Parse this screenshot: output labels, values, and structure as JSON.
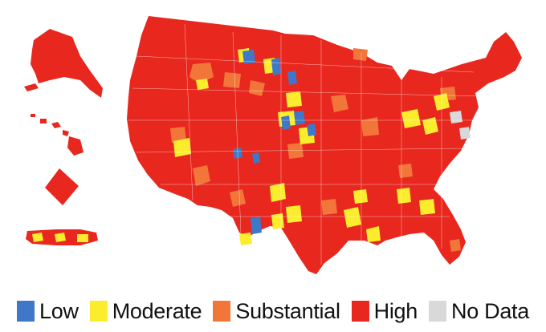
{
  "legend": {
    "items": [
      {
        "key": "low",
        "label": "Low",
        "color": "#3f78c8"
      },
      {
        "key": "moderate",
        "label": "Moderate",
        "color": "#fbed2d"
      },
      {
        "key": "substantial",
        "label": "Substantial",
        "color": "#f2763a"
      },
      {
        "key": "high",
        "label": "High",
        "color": "#e8281f"
      },
      {
        "key": "nodata",
        "label": "No Data",
        "color": "#d9d9d9"
      }
    ]
  },
  "regions": [
    {
      "name": "contiguous-us",
      "level": "high"
    },
    {
      "name": "alaska",
      "level": "high"
    },
    {
      "name": "hawaii",
      "level": "high"
    },
    {
      "name": "district-of-columbia",
      "level": "high"
    },
    {
      "name": "puerto-rico",
      "level": "high"
    }
  ]
}
